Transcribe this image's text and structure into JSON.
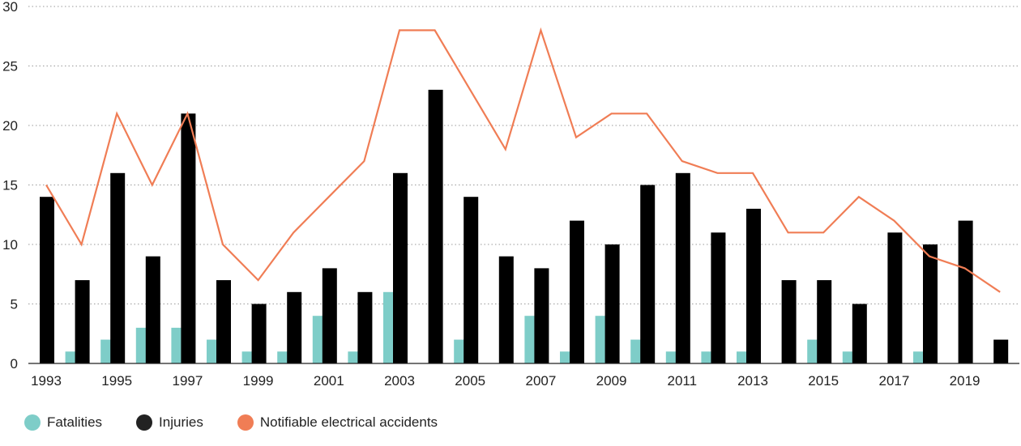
{
  "chart_data": {
    "type": "bar",
    "categories": [
      1993,
      1994,
      1995,
      1996,
      1997,
      1998,
      1999,
      2000,
      2001,
      2002,
      2003,
      2004,
      2005,
      2006,
      2007,
      2008,
      2009,
      2010,
      2011,
      2012,
      2013,
      2014,
      2015,
      2016,
      2017,
      2018,
      2019,
      2020
    ],
    "x_tick_labels": [
      "1993",
      "1995",
      "1997",
      "1999",
      "2001",
      "2003",
      "2005",
      "2007",
      "2009",
      "2011",
      "2013",
      "2015",
      "2017",
      "2019"
    ],
    "y_tick_labels": [
      "0",
      "5",
      "10",
      "15",
      "20",
      "25",
      "30"
    ],
    "ylim": [
      0,
      30
    ],
    "grid": "horizontal-dotted",
    "legend_position": "bottom-left",
    "series": [
      {
        "name": "Fatalities",
        "type": "bar",
        "color": "#7ecdc8",
        "values": [
          0,
          1,
          2,
          3,
          3,
          2,
          1,
          1,
          4,
          1,
          6,
          0,
          2,
          0,
          4,
          1,
          4,
          2,
          1,
          1,
          1,
          0,
          2,
          1,
          0,
          1,
          0,
          0
        ]
      },
      {
        "name": "Injuries",
        "type": "bar",
        "color": "#000000",
        "values": [
          14,
          7,
          16,
          9,
          21,
          7,
          5,
          6,
          8,
          6,
          16,
          23,
          14,
          9,
          8,
          12,
          10,
          15,
          16,
          11,
          13,
          7,
          7,
          5,
          11,
          10,
          12,
          2
        ]
      },
      {
        "name": "Notifiable electrical accidents",
        "type": "line",
        "color": "#f07d55",
        "values": [
          15,
          10,
          21,
          15,
          21,
          10,
          7,
          11,
          14,
          17,
          28,
          28,
          23,
          18,
          28,
          19,
          21,
          21,
          17,
          16,
          16,
          11,
          11,
          14,
          12,
          9,
          8,
          6
        ]
      }
    ]
  }
}
